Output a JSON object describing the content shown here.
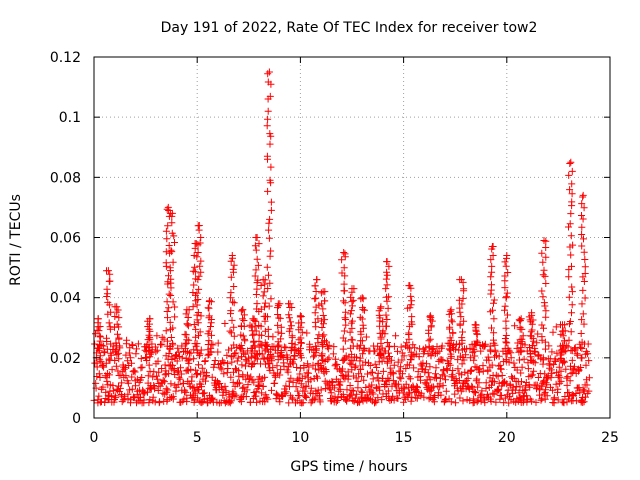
{
  "chart_data": {
    "type": "scatter",
    "title": "Day 191 of 2022, Rate Of TEC Index for receiver tow2",
    "xlabel": "GPS time / hours",
    "ylabel": "ROTI / TECUs",
    "xlim": [
      0,
      25
    ],
    "ylim": [
      0,
      0.12
    ],
    "xticks": [
      0,
      5,
      10,
      15,
      20,
      25
    ],
    "yticks": [
      0,
      0.02,
      0.04,
      0.06,
      0.08,
      0.1,
      0.12
    ],
    "xtick_labels": [
      "0",
      "5",
      "10",
      "15",
      "20",
      "25"
    ],
    "ytick_labels": [
      "0",
      "0.02",
      "0.04",
      "0.06",
      "0.08",
      "0.1",
      "0.12"
    ],
    "grid": true,
    "marker": "+",
    "color": "#ff0000",
    "x_range_data": [
      0,
      24
    ],
    "baseline_band": [
      0.005,
      0.025
    ],
    "bursts": [
      {
        "x": 0.2,
        "peak": 0.033
      },
      {
        "x": 0.7,
        "peak": 0.049
      },
      {
        "x": 1.1,
        "peak": 0.037
      },
      {
        "x": 2.7,
        "peak": 0.033
      },
      {
        "x": 3.6,
        "peak": 0.07
      },
      {
        "x": 3.8,
        "peak": 0.068
      },
      {
        "x": 4.5,
        "peak": 0.036
      },
      {
        "x": 4.9,
        "peak": 0.058
      },
      {
        "x": 5.1,
        "peak": 0.064
      },
      {
        "x": 5.6,
        "peak": 0.039
      },
      {
        "x": 6.7,
        "peak": 0.054
      },
      {
        "x": 7.2,
        "peak": 0.036
      },
      {
        "x": 7.7,
        "peak": 0.033
      },
      {
        "x": 7.9,
        "peak": 0.06
      },
      {
        "x": 8.2,
        "peak": 0.046
      },
      {
        "x": 8.5,
        "peak": 0.115
      },
      {
        "x": 9.0,
        "peak": 0.038
      },
      {
        "x": 9.5,
        "peak": 0.038
      },
      {
        "x": 10.0,
        "peak": 0.034
      },
      {
        "x": 10.8,
        "peak": 0.046
      },
      {
        "x": 11.1,
        "peak": 0.042
      },
      {
        "x": 12.1,
        "peak": 0.055
      },
      {
        "x": 12.5,
        "peak": 0.043
      },
      {
        "x": 13.0,
        "peak": 0.04
      },
      {
        "x": 13.9,
        "peak": 0.037
      },
      {
        "x": 14.2,
        "peak": 0.052
      },
      {
        "x": 15.3,
        "peak": 0.044
      },
      {
        "x": 16.3,
        "peak": 0.034
      },
      {
        "x": 17.3,
        "peak": 0.036
      },
      {
        "x": 17.8,
        "peak": 0.046
      },
      {
        "x": 18.5,
        "peak": 0.031
      },
      {
        "x": 19.3,
        "peak": 0.057
      },
      {
        "x": 20.0,
        "peak": 0.054
      },
      {
        "x": 20.7,
        "peak": 0.033
      },
      {
        "x": 21.2,
        "peak": 0.035
      },
      {
        "x": 21.8,
        "peak": 0.059
      },
      {
        "x": 22.7,
        "peak": 0.031
      },
      {
        "x": 23.1,
        "peak": 0.085
      },
      {
        "x": 23.7,
        "peak": 0.074
      }
    ]
  }
}
